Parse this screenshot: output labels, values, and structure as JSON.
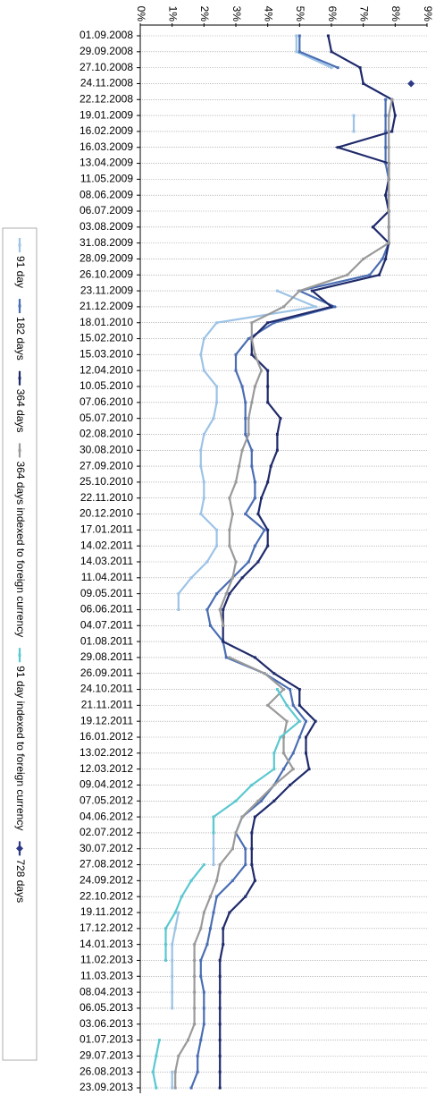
{
  "chart_data": {
    "type": "line",
    "orientation": "rotated",
    "categories": [
      "01.09.2008",
      "29.09.2008",
      "27.10.2008",
      "24.11.2008",
      "22.12.2008",
      "19.01.2009",
      "16.02.2009",
      "16.03.2009",
      "13.04.2009",
      "11.05.2009",
      "08.06.2009",
      "06.07.2009",
      "03.08.2009",
      "31.08.2009",
      "28.09.2009",
      "26.10.2009",
      "23.11.2009",
      "21.12.2009",
      "18.01.2010",
      "15.02.2010",
      "15.03.2010",
      "12.04.2010",
      "10.05.2010",
      "07.06.2010",
      "05.07.2010",
      "02.08.2010",
      "30.08.2010",
      "27.09.2010",
      "25.10.2010",
      "22.11.2010",
      "20.12.2010",
      "17.01.2011",
      "14.02.2011",
      "14.03.2011",
      "11.04.2011",
      "09.05.2011",
      "06.06.2011",
      "04.07.2011",
      "01.08.2011",
      "29.08.2011",
      "26.09.2011",
      "24.10.2011",
      "21.11.2011",
      "19.12.2011",
      "16.01.2012",
      "13.02.2012",
      "12.03.2012",
      "09.04.2012",
      "07.05.2012",
      "04.06.2012",
      "02.07.2012",
      "30.07.2012",
      "27.08.2012",
      "24.09.2012",
      "22.10.2012",
      "19.11.2012",
      "17.12.2012",
      "14.01.2013",
      "11.02.2013",
      "11.03.2013",
      "08.04.2013",
      "06.05.2013",
      "03.06.2013",
      "01.07.2013",
      "29.07.2013",
      "26.08.2013",
      "23.09.2013"
    ],
    "ylim": [
      0,
      9
    ],
    "yticks": [
      {
        "value": 0,
        "label": "0%"
      },
      {
        "value": 1,
        "label": "1%"
      },
      {
        "value": 2,
        "label": "2%"
      },
      {
        "value": 3,
        "label": "3%"
      },
      {
        "value": 4,
        "label": "4%"
      },
      {
        "value": 5,
        "label": "5%"
      },
      {
        "value": 6,
        "label": "6%"
      },
      {
        "value": 7,
        "label": "7%"
      },
      {
        "value": 8,
        "label": "8%"
      },
      {
        "value": 9,
        "label": "9%"
      }
    ],
    "grid": true,
    "series": [
      {
        "name": "91 day",
        "color": "#9dc3e6",
        "marker": "square",
        "values": [
          4.9,
          4.9,
          6.0,
          null,
          null,
          6.7,
          6.7,
          null,
          null,
          null,
          null,
          null,
          null,
          null,
          null,
          null,
          4.3,
          5.5,
          2.4,
          2.0,
          1.9,
          2.0,
          2.4,
          2.4,
          2.3,
          2.0,
          1.9,
          1.9,
          2.0,
          2.0,
          1.9,
          2.4,
          2.4,
          2.1,
          1.6,
          1.2,
          1.2,
          null,
          null,
          null,
          null,
          null,
          null,
          null,
          null,
          null,
          null,
          null,
          null,
          2.3,
          2.3,
          2.3,
          2.3,
          null,
          null,
          1.2,
          1.1,
          1.0,
          1.0,
          1.0,
          1.0,
          1.0,
          null,
          null,
          null,
          1.0,
          1.0
        ]
      },
      {
        "name": "182 days",
        "color": "#4a6eb3",
        "marker": "square",
        "values": [
          5.0,
          5.0,
          6.2,
          null,
          7.7,
          7.7,
          7.7,
          7.7,
          7.7,
          7.8,
          7.7,
          7.8,
          7.8,
          7.8,
          7.6,
          7.2,
          5.0,
          6.1,
          4.2,
          3.4,
          3.0,
          3.0,
          3.2,
          3.3,
          3.3,
          3.3,
          3.5,
          3.5,
          3.6,
          3.6,
          3.3,
          3.9,
          3.6,
          3.4,
          2.9,
          2.4,
          2.1,
          2.2,
          2.6,
          2.7,
          3.9,
          4.7,
          4.8,
          5.2,
          5.0,
          4.8,
          4.5,
          4.2,
          3.8,
          3.2,
          3.0,
          3.3,
          3.3,
          2.9,
          2.4,
          2.3,
          2.2,
          2.1,
          1.9,
          1.9,
          2.0,
          2.0,
          2.0,
          1.9,
          1.8,
          1.8,
          1.6
        ]
      },
      {
        "name": "364 days",
        "color": "#1f2a6b",
        "marker": "square",
        "values": [
          5.9,
          6.0,
          6.9,
          7.0,
          7.9,
          8.0,
          7.9,
          6.2,
          7.8,
          7.8,
          7.7,
          7.8,
          7.3,
          7.8,
          7.7,
          7.5,
          5.4,
          6.0,
          4.0,
          3.5,
          3.5,
          4.0,
          4.0,
          4.0,
          4.4,
          4.3,
          4.3,
          4.1,
          4.0,
          3.8,
          3.7,
          4.0,
          4.0,
          3.7,
          3.2,
          2.8,
          2.6,
          2.6,
          2.6,
          3.6,
          4.2,
          5.0,
          5.0,
          5.5,
          5.2,
          5.2,
          5.3,
          4.7,
          4.2,
          3.6,
          3.5,
          3.5,
          3.5,
          3.6,
          3.3,
          2.8,
          2.6,
          2.6,
          2.5,
          2.5,
          2.5,
          2.5,
          2.5,
          2.5,
          2.5,
          2.5,
          2.5
        ]
      },
      {
        "name": "364 days indexed to foreign currency",
        "color": "#9a9a9a",
        "marker": "square",
        "values": [
          null,
          null,
          null,
          null,
          7.9,
          7.8,
          7.8,
          7.8,
          7.8,
          7.8,
          7.8,
          7.8,
          7.8,
          7.8,
          7.0,
          6.5,
          5.0,
          4.5,
          3.5,
          3.5,
          3.6,
          3.8,
          3.6,
          3.5,
          3.4,
          3.4,
          3.2,
          3.1,
          3.0,
          2.8,
          2.9,
          2.8,
          2.8,
          3.0,
          2.9,
          2.7,
          2.5,
          2.6,
          null,
          2.8,
          3.9,
          4.5,
          4.0,
          4.6,
          4.5,
          4.5,
          4.8,
          4.2,
          3.7,
          3.2,
          3.0,
          2.9,
          2.5,
          2.4,
          2.2,
          2.0,
          1.9,
          1.7,
          1.7,
          1.7,
          1.7,
          1.7,
          1.7,
          1.5,
          1.2,
          1.1,
          1.1
        ]
      },
      {
        "name": "91 day indexed to foreign currency",
        "color": "#5bc8d0",
        "marker": "square",
        "values": [
          null,
          null,
          null,
          null,
          null,
          null,
          null,
          null,
          null,
          null,
          null,
          null,
          null,
          null,
          null,
          null,
          null,
          null,
          null,
          null,
          null,
          null,
          null,
          null,
          null,
          null,
          null,
          null,
          null,
          null,
          null,
          null,
          null,
          null,
          null,
          null,
          null,
          null,
          null,
          null,
          null,
          4.3,
          4.6,
          5.0,
          4.4,
          4.2,
          4.2,
          3.5,
          3.0,
          2.3,
          2.3,
          null,
          2.0,
          1.6,
          1.3,
          1.1,
          0.8,
          0.8,
          0.8,
          null,
          null,
          null,
          null,
          0.6,
          0.5,
          0.4,
          0.5
        ]
      },
      {
        "name": "728 days",
        "color": "#2e3a87",
        "marker": "diamond",
        "values": [
          null,
          null,
          null,
          8.5,
          null,
          null,
          null,
          null,
          null,
          null,
          null,
          null,
          null,
          null,
          null,
          null,
          null,
          null,
          null,
          null,
          null,
          null,
          null,
          null,
          null,
          null,
          null,
          null,
          null,
          null,
          null,
          null,
          null,
          null,
          null,
          null,
          null,
          null,
          null,
          null,
          null,
          null,
          null,
          null,
          null,
          null,
          null,
          null,
          null,
          null,
          null,
          null,
          null,
          null,
          null,
          null,
          null,
          null,
          null,
          null,
          null,
          null,
          null,
          null,
          null,
          null,
          null
        ]
      }
    ]
  }
}
